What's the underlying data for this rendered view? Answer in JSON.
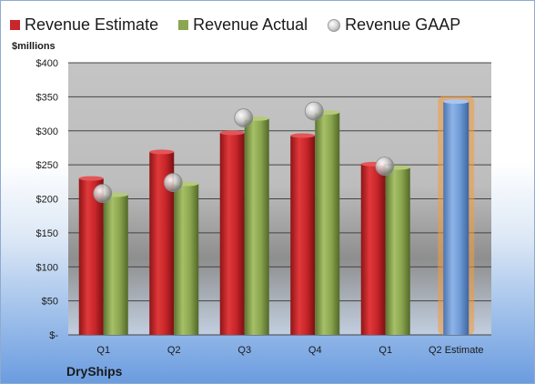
{
  "chart_data": {
    "type": "bar",
    "ylabel": "$millions",
    "categories": [
      "Q1",
      "Q2",
      "Q3",
      "Q4",
      "Q1",
      "Q2 Estimate"
    ],
    "yticks": [
      "$-",
      "$50",
      "$100",
      "$150",
      "$200",
      "$250",
      "$300",
      "$350",
      "$400"
    ],
    "ylim": [
      0,
      400
    ],
    "grid": true,
    "legend_position": "top",
    "series": [
      {
        "name": "Revenue Estimate",
        "type": "bar",
        "color": "#c8262a",
        "values": [
          230,
          269,
          297,
          293,
          251,
          null
        ]
      },
      {
        "name": "Revenue Actual",
        "type": "bar",
        "color": "#8ba650",
        "values": [
          206,
          222,
          318,
          327,
          246,
          null
        ]
      },
      {
        "name": "Revenue GAAP",
        "type": "scatter",
        "color": "#b8b8b8",
        "values": [
          208,
          224,
          319,
          329,
          248,
          null
        ]
      }
    ],
    "projection": {
      "category": "Q2 Estimate",
      "value": 343,
      "color": "#6f9bd6",
      "highlight_color": "#f59a3a"
    }
  },
  "footer": {
    "company": "DryShips"
  }
}
